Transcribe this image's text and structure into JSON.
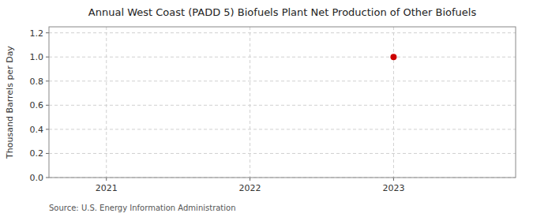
{
  "chart_data": {
    "type": "scatter",
    "title": "Annual West Coast (PADD 5) Biofuels Plant Net Production of Other Biofuels",
    "ylabel": "Thousand Barrels per Day",
    "source": "Source: U.S. Energy Information Administration",
    "x": [
      2023
    ],
    "values": [
      1.0
    ],
    "color": "#cc0000",
    "marker": "circle",
    "xlim": [
      2020.6,
      2023.85
    ],
    "ylim": [
      0.0,
      1.25
    ],
    "xticks": [
      2021,
      2022,
      2023
    ],
    "yticks": [
      {
        "value": 0.0,
        "label": "0.0"
      },
      0.2,
      0.4,
      0.6,
      0.8,
      {
        "value": 1.0,
        "label": "1.0"
      },
      1.2
    ],
    "grid": true
  }
}
